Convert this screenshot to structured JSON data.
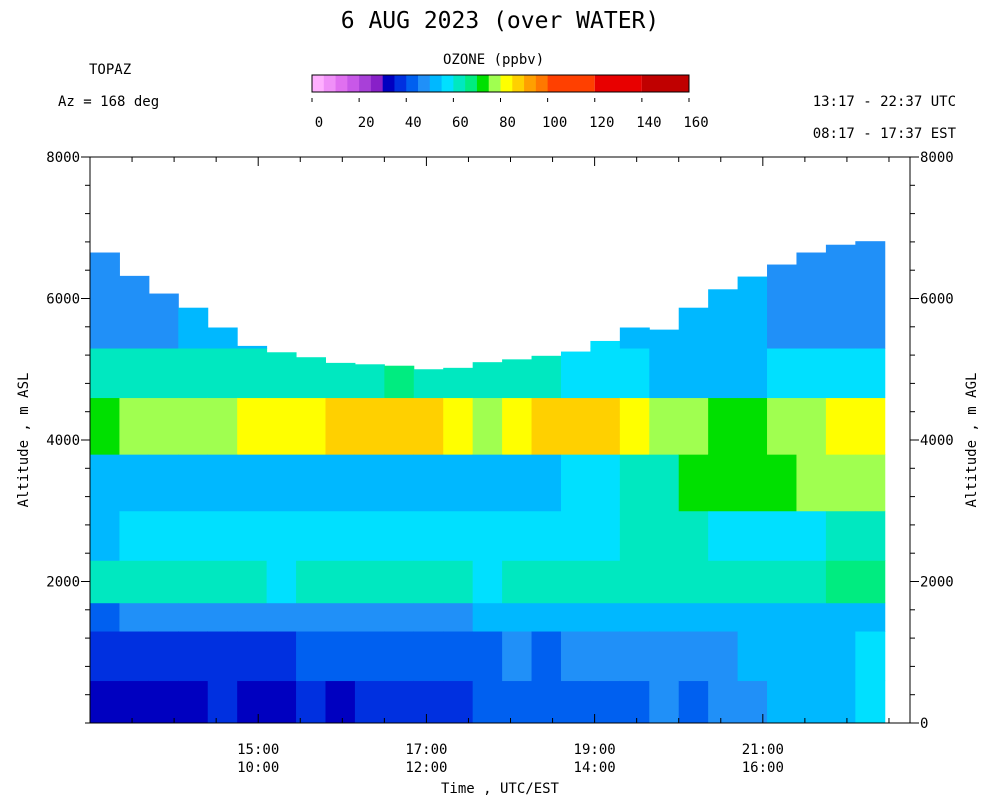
{
  "chart_data": {
    "type": "heatmap",
    "title": "6 AUG 2023 (over WATER)",
    "site": "TOPAZ",
    "azimuth_label": "Az = 168 deg",
    "time_range_utc": "13:17 - 22:37 UTC",
    "time_range_est": "08:17 - 17:37 EST",
    "colorbar": {
      "label": "OZONE (ppbv)",
      "range": [
        0,
        160
      ],
      "tick_labels": [
        "0",
        "20",
        "40",
        "60",
        "80",
        "100",
        "120",
        "140",
        "160"
      ],
      "tick_values": [
        0,
        20,
        40,
        60,
        80,
        100,
        120,
        140,
        160
      ],
      "fine_step": 5,
      "fine_range": [
        0,
        100
      ],
      "coarse_step": 20,
      "colors": [
        "#ffffff",
        "#ffb0ff",
        "#f090f8",
        "#e070f0",
        "#c858e8",
        "#a840d8",
        "#8820c8",
        "#0000c0",
        "#0030e0",
        "#0060f0",
        "#2090f8",
        "#00b8ff",
        "#00e0ff",
        "#00e8c0",
        "#00ec80",
        "#00e000",
        "#a0ff50",
        "#ffff00",
        "#ffd000",
        "#ffa000",
        "#ff7800",
        "#ff4000",
        "#e80000",
        "#c00000",
        "#a00030",
        "#606060",
        "#8c8c8c",
        "#c0c0c0"
      ]
    },
    "x_axis": {
      "label": "Time , UTC/EST",
      "range_utc_hours": [
        13.0,
        22.75
      ],
      "tick_labels_utc": [
        "15:00",
        "17:00",
        "19:00",
        "21:00"
      ],
      "tick_labels_est": [
        "10:00",
        "12:00",
        "14:00",
        "16:00"
      ],
      "tick_values_utc_hours": [
        15,
        17,
        19,
        21
      ],
      "minor_tick_step_hours": 0.5
    },
    "y_axis_left": {
      "label": "Altitude , m ASL",
      "range": [
        0,
        8000
      ],
      "tick_labels": [
        "2000",
        "4000",
        "6000",
        "8000"
      ],
      "tick_values": [
        2000,
        4000,
        6000,
        8000
      ],
      "minor_tick_step": 400
    },
    "y_axis_right": {
      "label": "Altitude , m AGL",
      "range": [
        0,
        8000
      ],
      "tick_labels": [
        "0",
        "2000",
        "4000",
        "6000",
        "8000"
      ],
      "tick_values": [
        0,
        2000,
        4000,
        6000,
        8000
      ]
    },
    "profiles": {
      "start_time_utc_hours": 13.0,
      "time_step_hours": 0.35,
      "top_altitudes_m": [
        6650,
        6320,
        6070,
        5870,
        5590,
        5330,
        5240,
        5170,
        5090,
        5070,
        5050,
        5000,
        5020,
        5100,
        5140,
        5190,
        5250,
        5400,
        5590,
        5560,
        5870,
        6130,
        6310,
        6480,
        6650,
        6760,
        6810
      ],
      "ozone_by_altitude_ppbv": [
        {
          "altitude_range_m": [
            0,
            600
          ],
          "ozone_ppbv": [
            30,
            32,
            34,
            34,
            35,
            33,
            34,
            35,
            34,
            36,
            35,
            36,
            38,
            40,
            42,
            43,
            42,
            43,
            44,
            46,
            44,
            45,
            48,
            50,
            52,
            53,
            55
          ]
        },
        {
          "altitude_range_m": [
            600,
            1300
          ],
          "ozone_ppbv": [
            37,
            37,
            38,
            38,
            38,
            39,
            39,
            40,
            40,
            41,
            42,
            42,
            42,
            44,
            45,
            44,
            45,
            45,
            45,
            46,
            47,
            48,
            50,
            51,
            52,
            54,
            55
          ]
        },
        {
          "altitude_range_m": [
            1300,
            1700
          ],
          "ozone_ppbv": [
            44,
            45,
            46,
            46,
            46,
            47,
            47,
            48,
            48,
            48,
            49,
            49,
            49,
            50,
            50,
            50,
            50,
            51,
            51,
            51,
            51,
            52,
            52,
            52,
            52,
            52,
            52
          ]
        },
        {
          "altitude_range_m": [
            1700,
            2300
          ],
          "ozone_ppbv": [
            60,
            60,
            62,
            62,
            61,
            60,
            59,
            60,
            61,
            60,
            61,
            62,
            60,
            59,
            60,
            61,
            61,
            62,
            63,
            62,
            62,
            61,
            61,
            62,
            63,
            65,
            66
          ]
        },
        {
          "altitude_range_m": [
            2300,
            3000
          ],
          "ozone_ppbv": [
            54,
            55,
            55,
            56,
            56,
            57,
            57,
            56,
            56,
            57,
            56,
            55,
            56,
            55,
            55,
            56,
            57,
            58,
            60,
            62,
            60,
            57,
            57,
            56,
            58,
            60,
            64
          ]
        },
        {
          "altitude_range_m": [
            3000,
            3800
          ],
          "ozone_ppbv": [
            50,
            52,
            54,
            52,
            52,
            53,
            53,
            52,
            53,
            51,
            51,
            52,
            53,
            54,
            53,
            53,
            55,
            57,
            60,
            64,
            70,
            72,
            74,
            74,
            76,
            78,
            78
          ]
        },
        {
          "altitude_range_m": [
            3800,
            4600
          ],
          "ozone_ppbv": [
            74,
            75,
            76,
            78,
            78,
            80,
            82,
            83,
            85,
            85,
            86,
            87,
            83,
            78,
            82,
            85,
            88,
            86,
            80,
            77,
            76,
            74,
            74,
            75,
            77,
            80,
            82
          ]
        },
        {
          "altitude_range_m": [
            4600,
            5300
          ],
          "ozone_ppbv": [
            64,
            63,
            62,
            61,
            60,
            60,
            60,
            62,
            62,
            64,
            65,
            64,
            62,
            60,
            62,
            60,
            58,
            57,
            55,
            54,
            53,
            53,
            54,
            55,
            56,
            56,
            57
          ]
        },
        {
          "altitude_range_m": [
            5300,
            8000
          ],
          "ozone_ppbv": [
            46,
            45,
            48,
            52,
            53,
            54,
            55,
            56,
            57,
            58,
            58,
            58,
            58,
            56,
            55,
            56,
            56,
            55,
            54,
            54,
            54,
            52,
            50,
            48,
            48,
            47,
            47
          ]
        }
      ]
    }
  }
}
